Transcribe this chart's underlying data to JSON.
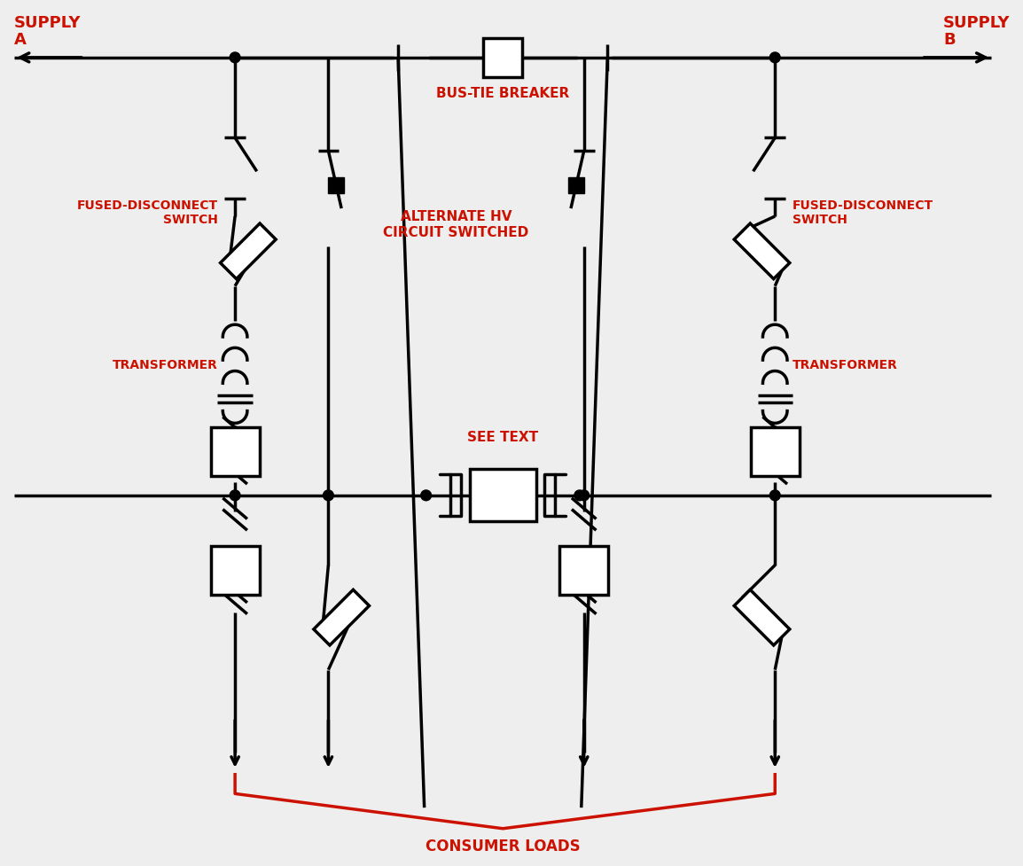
{
  "bg_color": "#eeeeee",
  "line_color": "#000000",
  "red_color": "#cc1100",
  "lw": 2.5,
  "supply_a_label": "SUPPLY\nA",
  "supply_b_label": "SUPPLY\nB",
  "bus_tie_label": "BUS-TIE BREAKER",
  "fused_disconnect_label": "FUSED-DISCONNECT\nSWITCH",
  "transformer_label": "TRANSFORMER",
  "alt_hv_label": "ALTERNATE HV\nCIRCUIT SWITCHED",
  "see_text_label": "SEE TEXT",
  "consumer_loads_label": "CONSUMER LOADS"
}
